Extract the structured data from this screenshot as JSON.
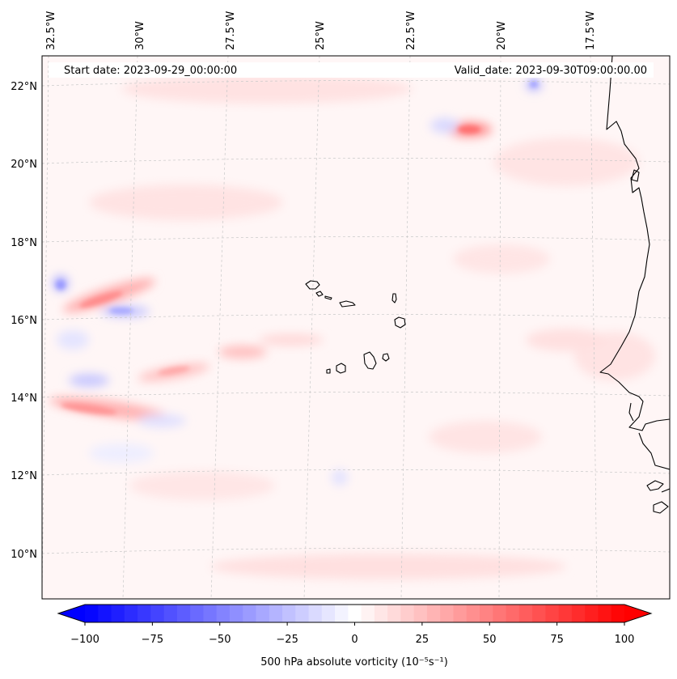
{
  "map": {
    "start_date": "Start date: 2023-09-29_00:00:00",
    "valid_date": "Valid_date: 2023-09-30T09:00:00.00",
    "lon_labels": [
      "32.5°W",
      "30°W",
      "27.5°W",
      "25°W",
      "22.5°W",
      "20°W",
      "17.5°W"
    ],
    "lat_labels": [
      "22°N",
      "20°N",
      "18°N",
      "16°N",
      "14°N",
      "12°N",
      "10°N"
    ],
    "extent": {
      "lon_min": -33.2,
      "lon_max": -16.0,
      "lat_min": 8.9,
      "lat_max": 22.8
    }
  },
  "colorbar": {
    "label": "500 hPa absolute vorticity (10⁻⁵s⁻¹)",
    "tick_labels": [
      "−100",
      "−75",
      "−50",
      "−25",
      "0",
      "25",
      "50",
      "75",
      "100"
    ],
    "range": [
      -100,
      100
    ],
    "levels": 41,
    "colors": {
      "negative": "#0000ff",
      "zero": "#ffffff",
      "positive": "#ff0000"
    }
  },
  "features": {
    "coastline_color": "#000000",
    "gridline_color": "#cccccc",
    "islands": [
      "Santo Antão",
      "São Vicente",
      "São Nicolau",
      "Sal",
      "Boa Vista",
      "Maio",
      "Santiago",
      "Fogo",
      "Brava"
    ]
  }
}
